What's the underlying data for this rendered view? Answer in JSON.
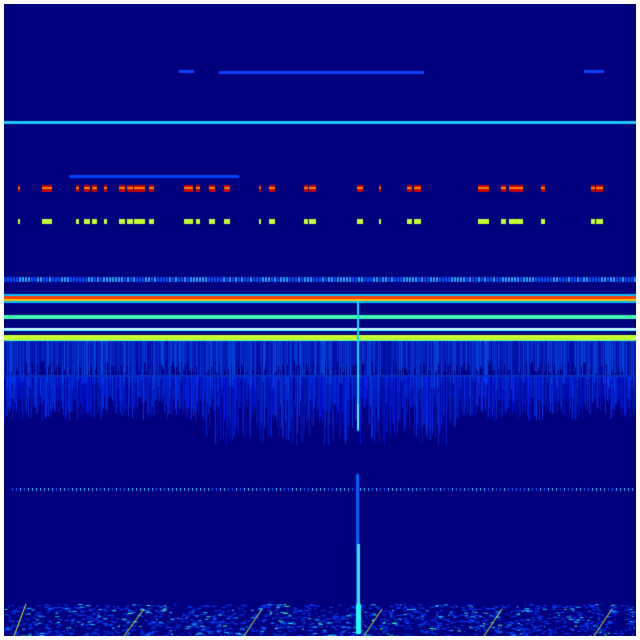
{
  "image": {
    "type": "spectrogram",
    "colormap": "jet",
    "colors": {
      "background": "#00007f",
      "low": "#0000ff",
      "mid_low": "#00bfff",
      "mid": "#40ffb0",
      "mid_high": "#c8ff30",
      "high": "#ff8000",
      "peak": "#c80000"
    }
  }
}
